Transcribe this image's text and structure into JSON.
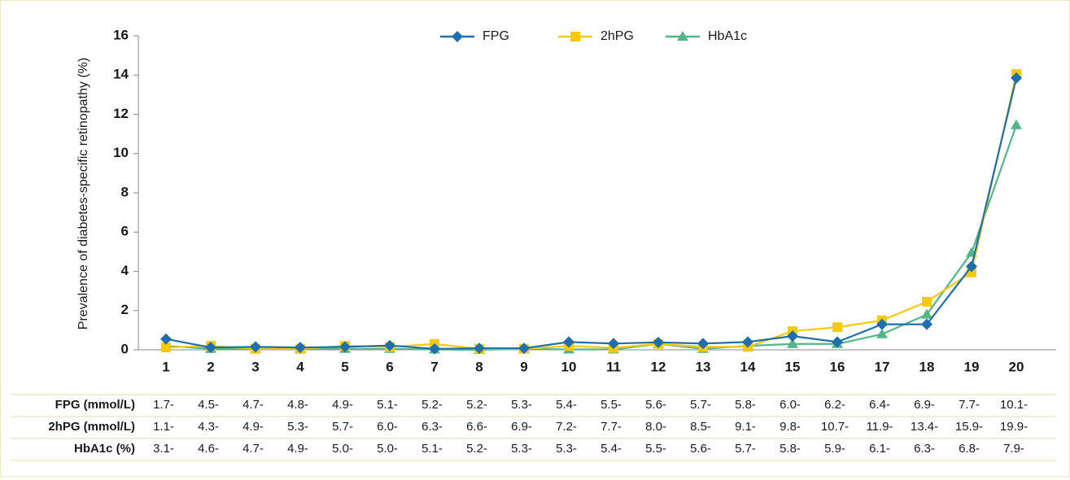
{
  "chart_data": {
    "type": "line",
    "y_label": "Prevalence of diabetes-specific retinopathy (%)",
    "categories": [
      "1",
      "2",
      "3",
      "4",
      "5",
      "6",
      "7",
      "8",
      "9",
      "10",
      "11",
      "12",
      "13",
      "14",
      "15",
      "16",
      "17",
      "18",
      "19",
      "20"
    ],
    "ylim": [
      0,
      16
    ],
    "yticks": [
      0,
      2,
      4,
      6,
      8,
      10,
      12,
      14,
      16
    ],
    "legend": "top",
    "series": [
      {
        "name": "FPG",
        "color": "#1f6fad",
        "marker": "diamond",
        "values": [
          0.55,
          0.12,
          0.15,
          0.12,
          0.15,
          0.22,
          0.05,
          0.08,
          0.08,
          0.4,
          0.32,
          0.38,
          0.32,
          0.4,
          0.7,
          0.4,
          1.3,
          1.3,
          4.25,
          13.85
        ]
      },
      {
        "name": "2hPG",
        "color": "#f5c90f",
        "marker": "square",
        "values": [
          0.12,
          0.2,
          0.05,
          0.05,
          0.2,
          0.15,
          0.3,
          0.05,
          0.05,
          0.2,
          0.1,
          0.3,
          0.15,
          0.15,
          0.95,
          1.15,
          1.5,
          2.45,
          3.95,
          14.05
        ]
      },
      {
        "name": "HbA1c",
        "color": "#52b788",
        "marker": "triangle",
        "values": [
          0.2,
          0.05,
          0.05,
          0.05,
          0.05,
          0.05,
          0.02,
          0.0,
          0.05,
          0.02,
          0.02,
          0.3,
          0.05,
          0.2,
          0.3,
          0.3,
          0.8,
          1.8,
          4.95,
          11.45
        ]
      }
    ],
    "table": {
      "rows": [
        {
          "label": "FPG (mmol/L)",
          "values": [
            "1.7-",
            "4.5-",
            "4.7-",
            "4.8-",
            "4.9-",
            "5.1-",
            "5.2-",
            "5.2-",
            "5.3-",
            "5.4-",
            "5.5-",
            "5.6-",
            "5.7-",
            "5.8-",
            "6.0-",
            "6.2-",
            "6.4-",
            "6.9-",
            "7.7-",
            "10.1-"
          ]
        },
        {
          "label": "2hPG (mmol/L)",
          "values": [
            "1.1-",
            "4.3-",
            "4.9-",
            "5.3-",
            "5.7-",
            "6.0-",
            "6.3-",
            "6.6-",
            "6.9-",
            "7.2-",
            "7.7-",
            "8.0-",
            "8.5-",
            "9.1-",
            "9.8-",
            "10.7-",
            "11.9-",
            "13.4-",
            "15.9-",
            "19.9-"
          ]
        },
        {
          "label": "HbA1c (%)",
          "values": [
            "3.1-",
            "4.6-",
            "4.7-",
            "4.9-",
            "5.0-",
            "5.0-",
            "5.1-",
            "5.2-",
            "5.3-",
            "5.3-",
            "5.4-",
            "5.5-",
            "5.6-",
            "5.7-",
            "5.8-",
            "5.9-",
            "6.1-",
            "6.3-",
            "6.8-",
            "7.9-"
          ]
        }
      ]
    }
  }
}
